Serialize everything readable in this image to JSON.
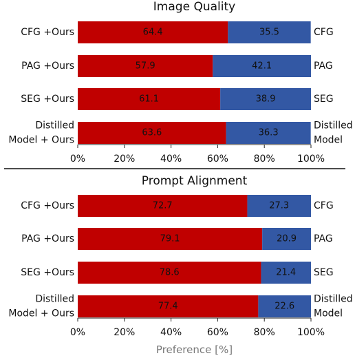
{
  "chart_data": [
    {
      "type": "bar",
      "orientation": "horizontal",
      "stacked": true,
      "title": "Image Quality",
      "xlabel": "",
      "xlim": [
        0,
        100
      ],
      "xticks": [
        "0%",
        "20%",
        "40%",
        "60%",
        "80%",
        "100%"
      ],
      "left_labels": [
        "CFG +Ours",
        "PAG +Ours",
        "SEG +Ours",
        "Distilled\nModel + Ours"
      ],
      "right_labels": [
        "CFG",
        "PAG",
        "SEG",
        "Distilled\nModel"
      ],
      "series": [
        {
          "values": [
            64.4,
            57.9,
            61.1,
            63.6
          ],
          "labels": [
            "64.4",
            "57.9",
            "61.1",
            "63.6"
          ],
          "color": "#c00000"
        },
        {
          "values": [
            35.5,
            42.1,
            38.9,
            36.3
          ],
          "labels": [
            "35.5",
            "42.1",
            "38.9",
            "36.3"
          ],
          "color": "#3358a4"
        }
      ]
    },
    {
      "type": "bar",
      "orientation": "horizontal",
      "stacked": true,
      "title": "Prompt Alignment",
      "xlabel": "Preference [%]",
      "xlim": [
        0,
        100
      ],
      "xticks": [
        "0%",
        "20%",
        "40%",
        "60%",
        "80%",
        "100%"
      ],
      "left_labels": [
        "CFG +Ours",
        "PAG +Ours",
        "SEG +Ours",
        "Distilled\nModel + Ours"
      ],
      "right_labels": [
        "CFG",
        "PAG",
        "SEG",
        "Distilled\nModel"
      ],
      "series": [
        {
          "values": [
            72.7,
            79.1,
            78.6,
            77.4
          ],
          "labels": [
            "72.7",
            "79.1",
            "78.6",
            "77.4"
          ],
          "color": "#c00000"
        },
        {
          "values": [
            27.3,
            20.9,
            21.4,
            22.6
          ],
          "labels": [
            "27.3",
            "20.9",
            "21.4",
            "22.6"
          ],
          "color": "#3358a4"
        }
      ]
    }
  ]
}
